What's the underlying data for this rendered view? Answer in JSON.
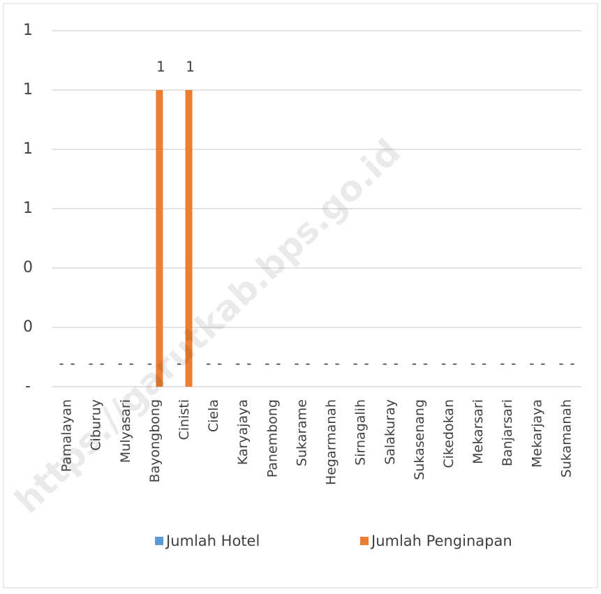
{
  "chart_data": {
    "type": "bar",
    "watermark": "https://garutkab.bps.go.id",
    "categories": [
      "Pamalayan",
      "Ciburuy",
      "Mulyasari",
      "Bayongbong",
      "Cinisti",
      "Ciela",
      "Karyajaya",
      "Panembong",
      "Sukarame",
      "Hegarmanah",
      "Sirnagalih",
      "Salakuray",
      "Sukasenang",
      "Cikedokan",
      "Mekarsari",
      "Banjarsari",
      "Mekarjaya",
      "Sukamanah"
    ],
    "series": [
      {
        "name": "Jumlah Hotel",
        "color": "#5b9bd5",
        "values": [
          0,
          0,
          0,
          0,
          0,
          0,
          0,
          0,
          0,
          0,
          0,
          0,
          0,
          0,
          0,
          0,
          0,
          0
        ],
        "value_labels": [
          "-",
          "-",
          "-",
          "-",
          "-",
          "-",
          "-",
          "-",
          "-",
          "-",
          "-",
          "-",
          "-",
          "-",
          "-",
          "-",
          "-",
          "-"
        ]
      },
      {
        "name": "Jumlah Penginapan",
        "color": "#ed7d31",
        "values": [
          0,
          0,
          0,
          1,
          1,
          0,
          0,
          0,
          0,
          0,
          0,
          0,
          0,
          0,
          0,
          0,
          0,
          0
        ],
        "value_labels": [
          "-",
          "-",
          "-",
          "1",
          "1",
          "-",
          "-",
          "-",
          "-",
          "-",
          "-",
          "-",
          "-",
          "-",
          "-",
          "-",
          "-",
          "-"
        ]
      }
    ],
    "ylim": [
      0,
      1.2
    ],
    "yticks": [
      {
        "value": 0,
        "label": "-"
      },
      {
        "value": 0.2,
        "label": "0"
      },
      {
        "value": 0.4,
        "label": "0"
      },
      {
        "value": 0.6,
        "label": "1"
      },
      {
        "value": 0.8,
        "label": "1"
      },
      {
        "value": 1.0,
        "label": "1"
      },
      {
        "value": 1.2,
        "label": "1"
      }
    ],
    "grid": true,
    "legend": "bottom"
  }
}
